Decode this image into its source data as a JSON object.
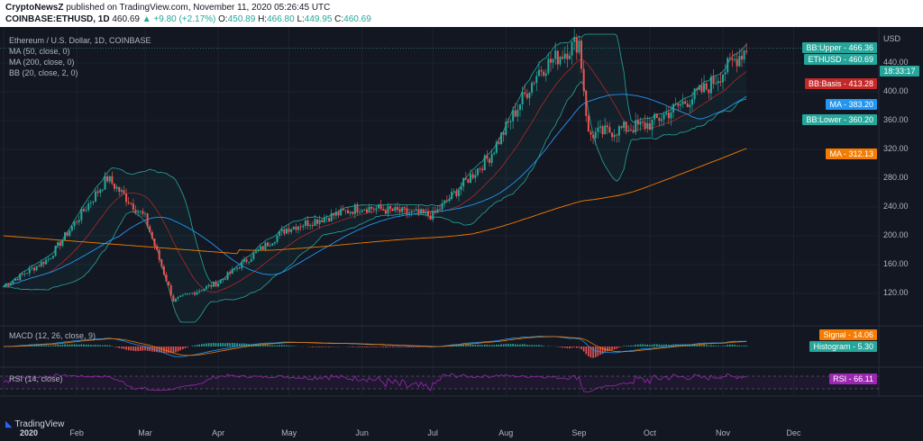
{
  "header": {
    "author": "CryptoNewsZ",
    "published_text": "published on TradingView.com, November 11, 2020 05:26:45 UTC",
    "symbol": "COINBASE:ETHUSD, 1D",
    "last": "460.69",
    "change": "▲ +9.80 (+2.17%)",
    "o_label": "O:",
    "o": "450.89",
    "h_label": "H:",
    "h": "466.80",
    "l_label": "L:",
    "l": "449.95",
    "c_label": "C:",
    "c": "460.69"
  },
  "legend": {
    "title": "Ethereum / U.S. Dollar, 1D, COINBASE",
    "ma50": "MA (50, close, 0)",
    "ma200": "MA (200, close, 0)",
    "bb": "BB (20, close, 2, 0)",
    "macd": "MACD (12, 26, close, 9)",
    "rsi": "RSI (14, close)"
  },
  "badges": [
    {
      "label": "BB:Upper",
      "value": "466.36",
      "color": "#26a69a"
    },
    {
      "label": "ETHUSD",
      "value": "460.69",
      "color": "#26a69a"
    },
    {
      "label": "",
      "value": "18:33:17",
      "color": "#26a69a"
    },
    {
      "label": "BB:Basis",
      "value": "413.28",
      "color": "#c62828"
    },
    {
      "label": "MA",
      "value": "383.20",
      "color": "#2196f3"
    },
    {
      "label": "BB:Lower",
      "value": "360.20",
      "color": "#26a69a"
    },
    {
      "label": "MA",
      "value": "312.13",
      "color": "#f57c00"
    },
    {
      "label": "Signal",
      "value": "14.06",
      "color": "#f57c00"
    },
    {
      "label": "Histogram",
      "value": "5.30",
      "color": "#26a69a"
    },
    {
      "label": "RSI",
      "value": "66.11",
      "color": "#9c27b0"
    }
  ],
  "footer": {
    "brand": "TradingView"
  },
  "chart_data": {
    "type": "candlestick",
    "title": "Ethereum / U.S. Dollar, 1D, COINBASE",
    "y_unit": "USD",
    "ylim": [
      80,
      480
    ],
    "yticks": [
      120,
      160,
      200,
      240,
      280,
      320,
      360,
      400,
      440
    ],
    "x_labels": [
      "2020",
      "Feb",
      "Mar",
      "Apr",
      "May",
      "Jun",
      "Jul",
      "Aug",
      "Sep",
      "Oct",
      "Nov",
      "Dec"
    ],
    "monthly_close_path": [
      {
        "x": "2020-01-01",
        "y": 130
      },
      {
        "x": "2020-01-20",
        "y": 168
      },
      {
        "x": "2020-02-14",
        "y": 280
      },
      {
        "x": "2020-03-01",
        "y": 225
      },
      {
        "x": "2020-03-13",
        "y": 110
      },
      {
        "x": "2020-04-01",
        "y": 135
      },
      {
        "x": "2020-04-30",
        "y": 210
      },
      {
        "x": "2020-06-01",
        "y": 240
      },
      {
        "x": "2020-07-01",
        "y": 228
      },
      {
        "x": "2020-07-25",
        "y": 310
      },
      {
        "x": "2020-08-15",
        "y": 430
      },
      {
        "x": "2020-09-01",
        "y": 470
      },
      {
        "x": "2020-09-05",
        "y": 340
      },
      {
        "x": "2020-10-01",
        "y": 355
      },
      {
        "x": "2020-10-25",
        "y": 405
      },
      {
        "x": "2020-11-11",
        "y": 460.69
      }
    ],
    "grid": true
  }
}
